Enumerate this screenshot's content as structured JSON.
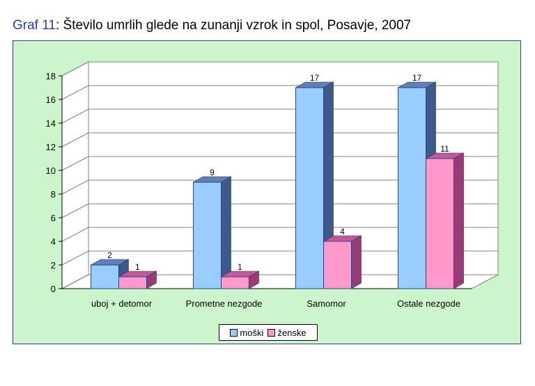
{
  "title_prefix": "Graf 11",
  "title_rest": ": Število umrlih glede na zunanji vzrok in spol, Posavje, 2007",
  "chart_data": {
    "type": "bar",
    "categories": [
      "uboj + detomor",
      "Prometne nezgode",
      "Samomor",
      "Ostale nezgode"
    ],
    "series": [
      {
        "name": "moški",
        "values": [
          2,
          9,
          17,
          17
        ],
        "color": "#99ccff",
        "side_color": "#3d5a8f",
        "top_color": "#5f7fb8"
      },
      {
        "name": "ženske",
        "values": [
          1,
          1,
          4,
          11
        ],
        "color": "#ff99cc",
        "side_color": "#9a3a79",
        "top_color": "#c05a9c"
      }
    ],
    "y_ticks": [
      "0",
      "2",
      "4",
      "6",
      "8",
      "10",
      "12",
      "14",
      "16",
      "18"
    ],
    "ylim": [
      0,
      18
    ],
    "grid": true,
    "legend_position": "bottom",
    "plot_background": "#ffffff",
    "chart_background": "#ccf5cc",
    "frame_color": "#3b3ba8"
  }
}
